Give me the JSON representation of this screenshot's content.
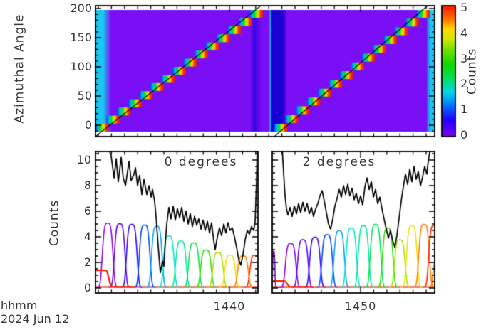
{
  "figure": {
    "footer": {
      "units": "hhmm",
      "date": "2024 Jun 12"
    }
  },
  "chart_data": [
    {
      "id": "azimuth-spectrogram",
      "type": "heatmap",
      "ylabel": "Azimuthal Angle",
      "yticks": [
        "0",
        "50",
        "100",
        "150",
        "200"
      ],
      "ytick_values": [
        0,
        50,
        100,
        150,
        200
      ],
      "yrange": [
        -20,
        214
      ],
      "y_minor_step": 10,
      "x_time": {
        "t0": -10.22,
        "t1": 15.65,
        "major_tick_minutes": [
          0,
          10
        ],
        "minor_step_min": 1
      },
      "grid": false,
      "background_color": "#7a0ef5",
      "vertical_bands": [
        {
          "t0": -10.22,
          "t1": -9.62,
          "c": "#1cc6f0"
        },
        {
          "t0": -9.62,
          "t1": -9.02,
          "grad": [
            "#1cc6f0",
            "#7a0ef5"
          ]
        },
        {
          "t0": 1.58,
          "t1": 1.9,
          "grad": [
            "#7a0ef5",
            "#3a06e4"
          ]
        },
        {
          "t0": 1.9,
          "t1": 2.44,
          "grad": [
            "#3a06e4",
            "#7a0ef5"
          ]
        },
        {
          "t0": 3.05,
          "t1": 3.16,
          "c": "#00a8ec"
        },
        {
          "t0": 3.16,
          "t1": 4.1,
          "c": "#1a00d2"
        },
        {
          "t0": 4.1,
          "t1": 4.38,
          "grad": [
            "#1a00d2",
            "#7a0ef5"
          ]
        },
        {
          "t0": 15.02,
          "t1": 15.25,
          "grad": [
            "#7a0ef5",
            "#1cc6f0"
          ]
        },
        {
          "t0": 15.25,
          "t1": 15.65,
          "c": "#1cc6f0"
        }
      ],
      "sweeps": [
        {
          "t_bottom": -10.22,
          "t_top": 2.39,
          "steps": 15
        },
        {
          "t_bottom": 3.42,
          "t_top": 15.11,
          "steps": 14
        }
      ],
      "sweep_block_stops": [
        [
          0,
          "#0048ff"
        ],
        [
          0.2,
          "#00c0e0"
        ],
        [
          0.38,
          "#00dc30"
        ],
        [
          0.55,
          "#c0e800"
        ],
        [
          0.68,
          "#ffc000"
        ],
        [
          0.8,
          "#ff3800"
        ],
        [
          1,
          "#e02000"
        ]
      ],
      "colorbar": {
        "label": "Counts",
        "ticks": [
          "0",
          "1",
          "2",
          "3",
          "4",
          "5"
        ],
        "tick_values": [
          0,
          1,
          2,
          3,
          4,
          5
        ],
        "stops": [
          [
            0,
            "#7c00f2"
          ],
          [
            0.13,
            "#2000ff"
          ],
          [
            0.25,
            "#0080ff"
          ],
          [
            0.34,
            "#00d8e8"
          ],
          [
            0.44,
            "#00e060"
          ],
          [
            0.55,
            "#10d800"
          ],
          [
            0.66,
            "#70e000"
          ],
          [
            0.75,
            "#d8e800"
          ],
          [
            0.82,
            "#ffd800"
          ],
          [
            0.9,
            "#ff7000"
          ],
          [
            1,
            "#ff1400"
          ]
        ]
      }
    },
    {
      "id": "counts-line-panels",
      "type": "line",
      "ylabel": "Counts",
      "yticks": [
        "0",
        "2",
        "4",
        "6",
        "8",
        "10"
      ],
      "ytick_values": [
        0,
        2,
        4,
        6,
        8,
        10
      ],
      "yrange": [
        -0.4,
        10.6
      ],
      "y_minor_step": 0.5,
      "xticks": [
        {
          "t": 0,
          "label": "1440"
        },
        {
          "t": 10,
          "label": "1450"
        }
      ],
      "x_minor_step_min": 1,
      "black_trace_color": "#000000",
      "baseline": {
        "v": 0.08,
        "color": "#dd2200"
      },
      "panels": [
        {
          "label": "0 degrees",
          "t0": -10.22,
          "t1": 2.17,
          "peaks": [
            {
              "t": -9.29,
              "h": 5.0,
              "c": "#9100e8"
            },
            {
              "t": -8.37,
              "h": 4.95,
              "c": "#5b00f5"
            },
            {
              "t": -7.45,
              "h": 4.9,
              "c": "#2a06ff"
            },
            {
              "t": -6.47,
              "h": 4.85,
              "c": "#0048ff"
            },
            {
              "t": -5.54,
              "h": 4.75,
              "c": "#00a2f5"
            },
            {
              "t": -4.62,
              "h": 4.0,
              "c": "#00e3d8"
            },
            {
              "t": -3.7,
              "h": 3.6,
              "c": "#00e89c"
            },
            {
              "t": -2.72,
              "h": 3.45,
              "c": "#00e455"
            },
            {
              "t": -1.79,
              "h": 2.9,
              "c": "#30dd00"
            },
            {
              "t": -0.87,
              "h": 2.7,
              "c": "#a8e000"
            },
            {
              "t": 0.05,
              "h": 2.5,
              "c": "#f0e000"
            },
            {
              "t": 1.03,
              "h": 2.45,
              "c": "#ff8000"
            },
            {
              "t": 1.96,
              "h": 2.5,
              "c": "#ff2200"
            }
          ],
          "tails": [
            {
              "t_start": -10.22,
              "v": 1.38,
              "t_drop": -9.45,
              "c": "#ee2200"
            }
          ],
          "edge_spikes": [],
          "black_trace": [
            [
              -9.24,
              11
            ],
            [
              -9.02,
              10.3
            ],
            [
              -8.8,
              8.6
            ],
            [
              -8.64,
              10.1
            ],
            [
              -8.48,
              8.3
            ],
            [
              -8.26,
              10.2
            ],
            [
              -8.1,
              8.6
            ],
            [
              -7.93,
              8.0
            ],
            [
              -7.66,
              9.9
            ],
            [
              -7.5,
              8.4
            ],
            [
              -7.28,
              8.9
            ],
            [
              -7.17,
              9.4
            ],
            [
              -7.01,
              8.0
            ],
            [
              -6.85,
              8.8
            ],
            [
              -6.68,
              7.3
            ],
            [
              -6.52,
              8.5
            ],
            [
              -6.3,
              7.3
            ],
            [
              -6.14,
              8.0
            ],
            [
              -5.98,
              7.1
            ],
            [
              -5.87,
              7.7
            ],
            [
              -5.71,
              6.8
            ],
            [
              -5.6,
              5.6
            ],
            [
              -5.43,
              3.2
            ],
            [
              -5.27,
              1.2
            ],
            [
              -5.11,
              2.1
            ],
            [
              -5.0,
              1.7
            ],
            [
              -4.89,
              3.6
            ],
            [
              -4.78,
              5.0
            ],
            [
              -4.62,
              6.3
            ],
            [
              -4.46,
              5.4
            ],
            [
              -4.29,
              6.4
            ],
            [
              -4.13,
              5.3
            ],
            [
              -3.97,
              6.2
            ],
            [
              -3.8,
              5.5
            ],
            [
              -3.64,
              6.3
            ],
            [
              -3.48,
              5.2
            ],
            [
              -3.32,
              6.0
            ],
            [
              -3.15,
              5.0
            ],
            [
              -2.99,
              5.8
            ],
            [
              -2.83,
              4.8
            ],
            [
              -2.66,
              5.6
            ],
            [
              -2.5,
              4.9
            ],
            [
              -2.34,
              5.4
            ],
            [
              -2.17,
              4.6
            ],
            [
              -2.01,
              5.3
            ],
            [
              -1.85,
              4.5
            ],
            [
              -1.68,
              5.2
            ],
            [
              -1.52,
              4.3
            ],
            [
              -1.36,
              5.1
            ],
            [
              -1.2,
              3.7
            ],
            [
              -1.09,
              3.0
            ],
            [
              -0.92,
              4.0
            ],
            [
              -0.76,
              4.7
            ],
            [
              -0.6,
              4.1
            ],
            [
              -0.43,
              5.0
            ],
            [
              -0.27,
              4.3
            ],
            [
              -0.11,
              5.1
            ],
            [
              0.05,
              4.5
            ],
            [
              0.22,
              4.7
            ],
            [
              0.38,
              4.0
            ],
            [
              0.54,
              3.2
            ],
            [
              0.71,
              2.2
            ],
            [
              0.87,
              1.8
            ],
            [
              1.03,
              2.6
            ],
            [
              1.2,
              3.8
            ],
            [
              1.36,
              4.5
            ],
            [
              1.52,
              4.2
            ],
            [
              1.68,
              4.8
            ],
            [
              1.85,
              4.5
            ],
            [
              1.96,
              5.2
            ],
            [
              2.07,
              8.5
            ],
            [
              2.12,
              11
            ]
          ]
        },
        {
          "label": "2 degrees",
          "t0": 3.32,
          "t1": 15.65,
          "peaks": [
            {
              "t": 4.67,
              "h": 3.4,
              "c": "#9100e8"
            },
            {
              "t": 5.6,
              "h": 3.7,
              "c": "#5b00f5"
            },
            {
              "t": 6.52,
              "h": 3.9,
              "c": "#2a06ff"
            },
            {
              "t": 7.45,
              "h": 4.1,
              "c": "#0048ff"
            },
            {
              "t": 8.37,
              "h": 4.4,
              "c": "#00a2f5"
            },
            {
              "t": 9.29,
              "h": 4.6,
              "c": "#00e3d8"
            },
            {
              "t": 10.22,
              "h": 4.8,
              "c": "#00e89c"
            },
            {
              "t": 11.14,
              "h": 4.9,
              "c": "#00e455"
            },
            {
              "t": 12.07,
              "h": 4.6,
              "c": "#30dd00"
            },
            {
              "t": 12.99,
              "h": 3.7,
              "c": "#a8e000"
            },
            {
              "t": 13.91,
              "h": 4.8,
              "c": "#f0e000"
            },
            {
              "t": 14.84,
              "h": 4.9,
              "c": "#ff8000"
            },
            {
              "t": 15.6,
              "h": 4.8,
              "c": "#ff2200"
            }
          ],
          "tails": [
            {
              "t_start": 3.32,
              "v": 0.55,
              "t_drop": 4.15,
              "c": "#ee2200"
            }
          ],
          "edge_spikes": [
            {
              "t": 3.38,
              "h": 2.8,
              "w": 0.1,
              "c": "#7a00e8"
            },
            {
              "t": 15.78,
              "h": 2.0,
              "w": 0.3,
              "c": "#ff8000"
            }
          ],
          "black_trace": [
            [
              4.02,
              11
            ],
            [
              4.13,
              9.0
            ],
            [
              4.24,
              7.2
            ],
            [
              4.35,
              6.2
            ],
            [
              4.46,
              5.7
            ],
            [
              4.62,
              6.3
            ],
            [
              4.78,
              5.6
            ],
            [
              4.95,
              6.4
            ],
            [
              5.11,
              5.8
            ],
            [
              5.27,
              6.6
            ],
            [
              5.43,
              5.9
            ],
            [
              5.6,
              6.7
            ],
            [
              5.76,
              6.0
            ],
            [
              5.92,
              6.6
            ],
            [
              6.09,
              5.8
            ],
            [
              6.25,
              6.3
            ],
            [
              6.41,
              5.6
            ],
            [
              6.58,
              6.2
            ],
            [
              6.74,
              6.6
            ],
            [
              6.9,
              7.2
            ],
            [
              7.07,
              7.6
            ],
            [
              7.23,
              6.8
            ],
            [
              7.39,
              5.9
            ],
            [
              7.55,
              5.0
            ],
            [
              7.72,
              4.6
            ],
            [
              7.88,
              5.4
            ],
            [
              8.04,
              6.4
            ],
            [
              8.21,
              7.0
            ],
            [
              8.37,
              7.7
            ],
            [
              8.53,
              7.1
            ],
            [
              8.7,
              8.0
            ],
            [
              8.86,
              7.3
            ],
            [
              9.02,
              8.1
            ],
            [
              9.18,
              7.2
            ],
            [
              9.35,
              7.8
            ],
            [
              9.51,
              6.9
            ],
            [
              9.67,
              7.4
            ],
            [
              9.84,
              6.6
            ],
            [
              10.0,
              7.2
            ],
            [
              10.16,
              6.5
            ],
            [
              10.33,
              7.9
            ],
            [
              10.49,
              8.6
            ],
            [
              10.65,
              7.7
            ],
            [
              10.82,
              8.3
            ],
            [
              10.98,
              7.1
            ],
            [
              11.14,
              7.7
            ],
            [
              11.3,
              6.6
            ],
            [
              11.47,
              7.1
            ],
            [
              11.63,
              6.2
            ],
            [
              11.79,
              5.4
            ],
            [
              11.96,
              4.6
            ],
            [
              12.12,
              3.9
            ],
            [
              12.28,
              4.5
            ],
            [
              12.45,
              3.7
            ],
            [
              12.61,
              3.2
            ],
            [
              12.77,
              4.1
            ],
            [
              12.93,
              5.4
            ],
            [
              13.1,
              6.8
            ],
            [
              13.26,
              7.9
            ],
            [
              13.42,
              8.9
            ],
            [
              13.59,
              8.1
            ],
            [
              13.75,
              9.3
            ],
            [
              13.91,
              8.3
            ],
            [
              14.08,
              9.5
            ],
            [
              14.24,
              8.5
            ],
            [
              14.4,
              9.1
            ],
            [
              14.57,
              8.0
            ],
            [
              14.73,
              8.7
            ],
            [
              14.89,
              9.5
            ],
            [
              15.05,
              8.9
            ],
            [
              15.16,
              9.9
            ],
            [
              15.27,
              10.6
            ],
            [
              15.38,
              11.2
            ]
          ]
        }
      ]
    }
  ]
}
